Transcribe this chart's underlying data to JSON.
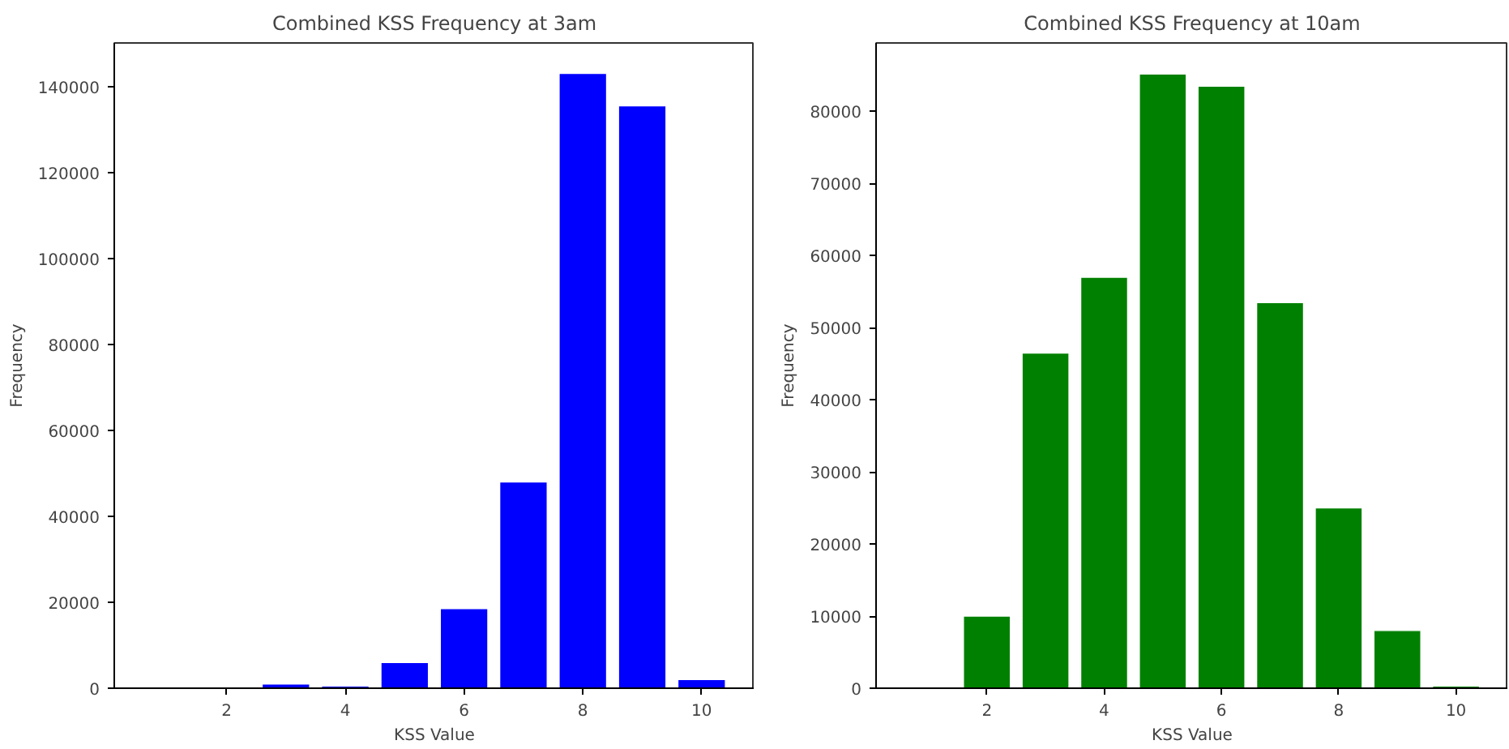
{
  "chart_data": [
    {
      "type": "bar",
      "title": "Combined KSS Frequency at 3am",
      "xlabel": "KSS Value",
      "ylabel": "Frequency",
      "x": [
        3,
        4,
        5,
        6,
        7,
        8,
        9,
        10
      ],
      "values": [
        1000,
        500,
        6000,
        18500,
        48000,
        143000,
        135500,
        2000
      ],
      "color": "#0000ff",
      "xlim": [
        0.11,
        10.89
      ],
      "xticks": [
        2,
        4,
        6,
        8,
        10
      ],
      "ylim": [
        0,
        150100
      ],
      "yticks": [
        0,
        20000,
        40000,
        60000,
        80000,
        100000,
        120000,
        140000
      ],
      "grid": false
    },
    {
      "type": "bar",
      "title": "Combined KSS Frequency at 10am",
      "xlabel": "KSS Value",
      "ylabel": "Frequency",
      "x": [
        2,
        3,
        4,
        5,
        6,
        7,
        8,
        9,
        10
      ],
      "values": [
        10000,
        46500,
        57000,
        85200,
        83500,
        53500,
        25000,
        8000,
        300
      ],
      "color": "#008000",
      "xlim": [
        0.11,
        10.89
      ],
      "xticks": [
        2,
        4,
        6,
        8,
        10
      ],
      "ylim": [
        0,
        89500
      ],
      "yticks": [
        0,
        10000,
        20000,
        30000,
        40000,
        50000,
        60000,
        70000,
        80000
      ],
      "grid": false
    }
  ]
}
